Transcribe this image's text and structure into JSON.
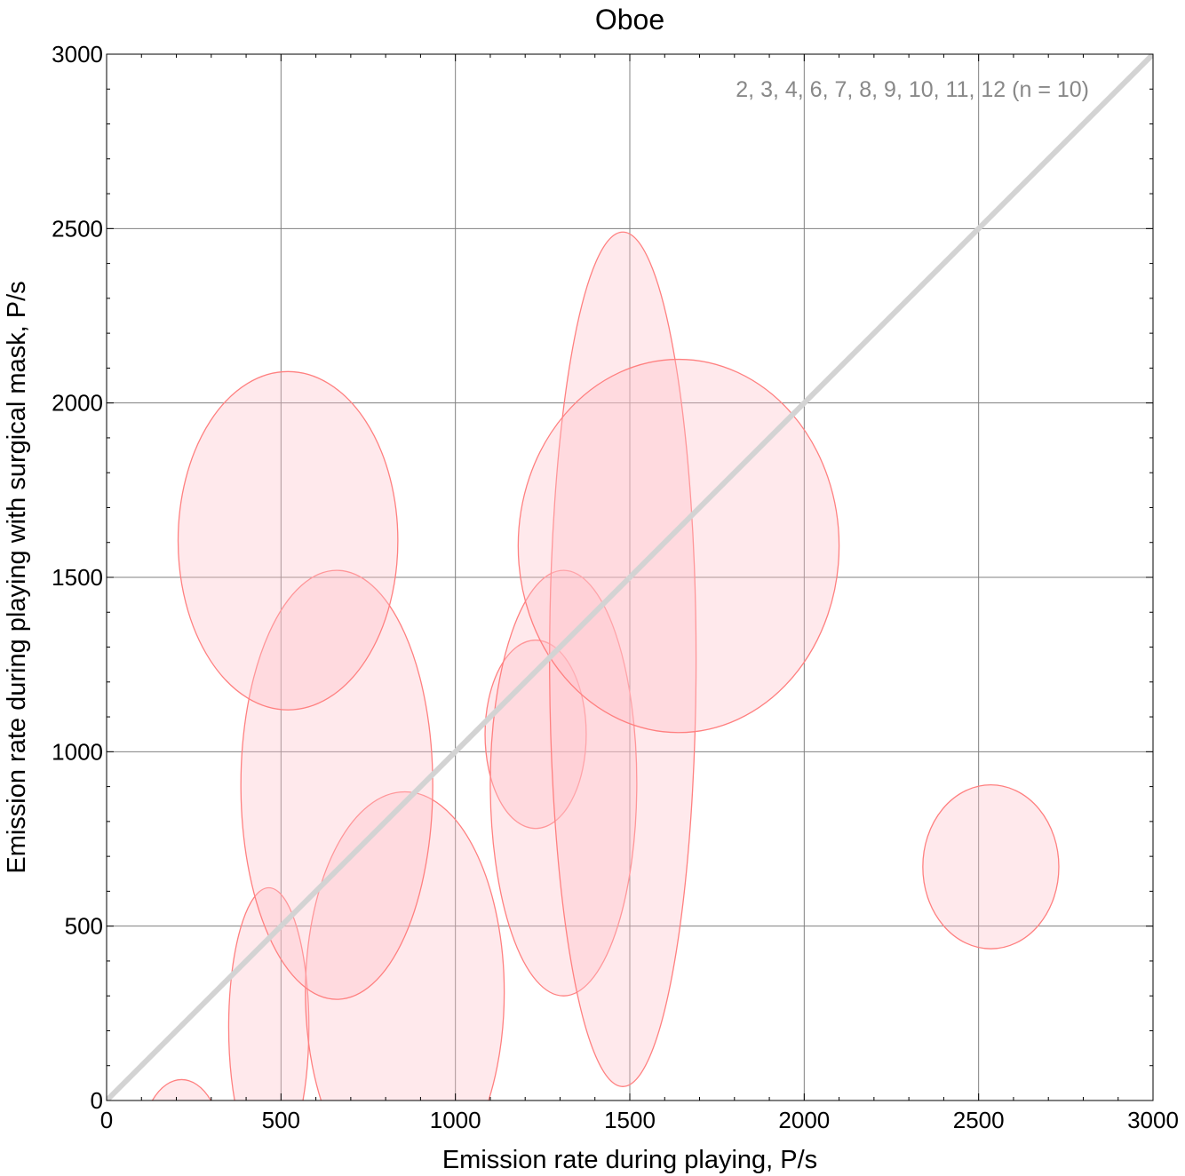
{
  "chart_data": {
    "type": "scatter",
    "title": "Oboe",
    "xlabel": "Emission rate during playing,  P/s",
    "ylabel": "Emission rate during playing with surgical mask,  P/s",
    "xlim": [
      0,
      3000
    ],
    "ylim": [
      0,
      3000
    ],
    "xticks": [
      0,
      500,
      1000,
      1500,
      2000,
      2500,
      3000
    ],
    "yticks": [
      0,
      500,
      1000,
      1500,
      2000,
      2500,
      3000
    ],
    "xtick_labels": [
      "0",
      "500",
      "1000",
      "1500",
      "2000",
      "2500",
      "3000"
    ],
    "ytick_labels": [
      "0",
      "500",
      "1000",
      "1500",
      "2000",
      "2500",
      "3000"
    ],
    "grid": true,
    "annotation": "2, 3, 4, 6, 7, 8, 9, 10, 11, 12  (n = 10)",
    "reference_line": {
      "from": [
        0,
        0
      ],
      "to": [
        3000,
        3000
      ],
      "color": "#d3d3d3"
    },
    "ellipse_fill": "#ffc0c8",
    "ellipse_stroke": "#ff8080",
    "grid_color": "#808080",
    "points": [
      {
        "x": 215,
        "y": -150,
        "x_err": 120,
        "y_err": 210
      },
      {
        "x": 465,
        "y": 210,
        "x_err": 115,
        "y_err": 400
      },
      {
        "x": 855,
        "y": 310,
        "x_err": 285,
        "y_err": 575
      },
      {
        "x": 660,
        "y": 905,
        "x_err": 275,
        "y_err": 615
      },
      {
        "x": 520,
        "y": 1605,
        "x_err": 315,
        "y_err": 485
      },
      {
        "x": 1230,
        "y": 1050,
        "x_err": 145,
        "y_err": 270
      },
      {
        "x": 1310,
        "y": 910,
        "x_err": 210,
        "y_err": 610
      },
      {
        "x": 1480,
        "y": 1265,
        "x_err": 210,
        "y_err": 1225
      },
      {
        "x": 1640,
        "y": 1590,
        "x_err": 460,
        "y_err": 535
      },
      {
        "x": 2535,
        "y": 670,
        "x_err": 195,
        "y_err": 235
      }
    ]
  }
}
